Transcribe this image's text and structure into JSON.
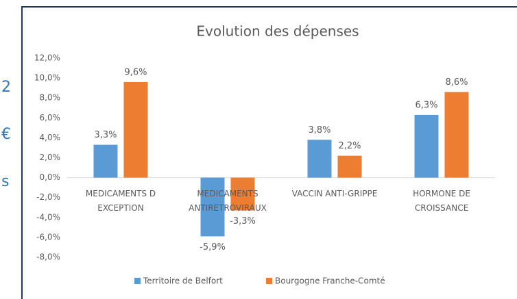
{
  "page_fragments": [
    "2",
    "€",
    "s"
  ],
  "chart_data": {
    "type": "bar",
    "title": "Evolution des dépenses",
    "categories": [
      "MEDICAMENTS D\nEXCEPTION",
      "MEDICAMENTS\nANTIRETROVIRAUX",
      "VACCIN ANTI-GRIPPE",
      "HORMONE DE\nCROISSANCE"
    ],
    "series": [
      {
        "name": "Territoire de Belfort",
        "color": "#5b9bd5",
        "values": [
          3.3,
          -5.9,
          3.8,
          6.3
        ],
        "value_labels": [
          "3,3%",
          "-5,9%",
          "3,8%",
          "6,3%"
        ]
      },
      {
        "name": "Bourgogne Franche-Comté",
        "color": "#ed7d31",
        "values": [
          9.6,
          -3.3,
          2.2,
          8.6
        ],
        "value_labels": [
          "9,6%",
          "-3,3%",
          "2,2%",
          "8,6%"
        ]
      }
    ],
    "ylim": [
      -8,
      12
    ],
    "yticks": [
      {
        "value": -8,
        "label": "-8,0%"
      },
      {
        "value": -6,
        "label": "-6,0%"
      },
      {
        "value": -4,
        "label": "-4,0%"
      },
      {
        "value": -2,
        "label": "-2,0%"
      },
      {
        "value": 0,
        "label": "0,0%"
      },
      {
        "value": 2,
        "label": "2,0%"
      },
      {
        "value": 4,
        "label": "4,0%"
      },
      {
        "value": 6,
        "label": "6,0%"
      },
      {
        "value": 8,
        "label": "8,0%"
      },
      {
        "value": 10,
        "label": "10,0%"
      },
      {
        "value": 12,
        "label": "12,0%"
      }
    ],
    "grid": false,
    "legend": "bottom"
  }
}
